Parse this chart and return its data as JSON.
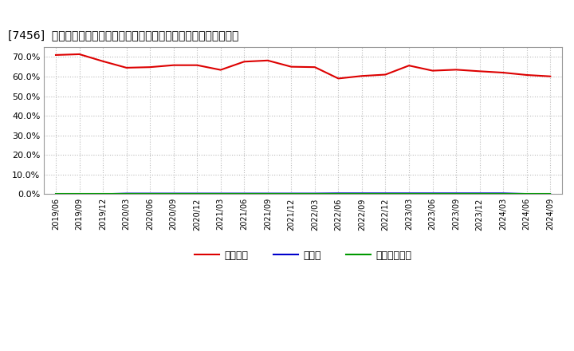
{
  "title": "[7456]  自己資本、のれん、繰延税金資産の総資産に対する比率の推移",
  "title_prefix": "[7456]  ",
  "title_suffix": "自己資本、のれん、繰延税金資産の総資産に対する比率の推移",
  "x_labels": [
    "2019/06",
    "2019/09",
    "2019/12",
    "2020/03",
    "2020/06",
    "2020/09",
    "2020/12",
    "2021/03",
    "2021/06",
    "2021/09",
    "2021/12",
    "2022/03",
    "2022/06",
    "2022/09",
    "2022/12",
    "2023/03",
    "2023/06",
    "2023/09",
    "2023/12",
    "2024/03",
    "2024/06",
    "2024/09"
  ],
  "equity_ratio": [
    0.71,
    0.714,
    0.678,
    0.645,
    0.648,
    0.658,
    0.658,
    0.634,
    0.676,
    0.682,
    0.65,
    0.648,
    0.59,
    0.603,
    0.61,
    0.656,
    0.63,
    0.635,
    0.627,
    0.62,
    0.608,
    0.601
  ],
  "noren_ratio": [
    0.0,
    0.0,
    0.0,
    0.003,
    0.003,
    0.003,
    0.003,
    0.003,
    0.003,
    0.003,
    0.003,
    0.003,
    0.004,
    0.004,
    0.004,
    0.004,
    0.004,
    0.004,
    0.004,
    0.004,
    0.001,
    0.0
  ],
  "deferred_tax_ratio": [
    0.003,
    0.003,
    0.003,
    0.003,
    0.003,
    0.003,
    0.003,
    0.003,
    0.003,
    0.003,
    0.003,
    0.003,
    0.003,
    0.003,
    0.003,
    0.003,
    0.003,
    0.003,
    0.003,
    0.003,
    0.003,
    0.003
  ],
  "equity_color": "#dd0000",
  "noren_color": "#0000cc",
  "deferred_tax_color": "#009900",
  "bg_color": "#ffffff",
  "plot_bg_color": "#ffffff",
  "grid_color": "#bbbbbb",
  "legend_labels": [
    "自己資本",
    "のれん",
    "繰延税金資産"
  ],
  "ylim": [
    0.0,
    0.75
  ],
  "yticks": [
    0.0,
    0.1,
    0.2,
    0.3,
    0.4,
    0.5,
    0.6,
    0.7
  ]
}
